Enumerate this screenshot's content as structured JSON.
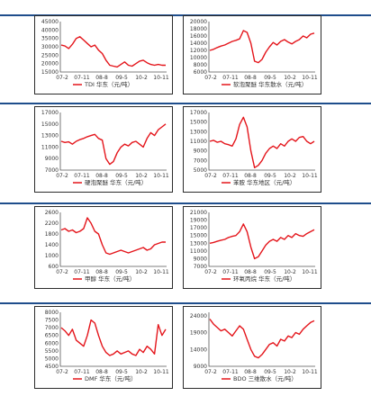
{
  "colors": {
    "line": "#e4151b",
    "rule": "#1f4e8c",
    "axis": "#555555"
  },
  "chart_data": [
    {
      "type": "line",
      "legend": "TDI  华东（元/吨）",
      "x_ticks": [
        "07-2",
        "07-11",
        "08-8",
        "09-5",
        "10-2",
        "10-11"
      ],
      "y_ticks": [
        15000,
        20000,
        25000,
        30000,
        35000,
        40000,
        45000
      ],
      "ylim": [
        15000,
        45000
      ],
      "series": [
        {
          "values": [
            31000,
            30500,
            29000,
            31500,
            35000,
            36000,
            34000,
            32000,
            30000,
            31000,
            28000,
            26000,
            22000,
            19000,
            18500,
            18000,
            19500,
            21000,
            19000,
            18500,
            20000,
            21500,
            22000,
            20500,
            19500,
            19000,
            19500,
            19000,
            19000
          ]
        }
      ]
    },
    {
      "type": "line",
      "legend": "软泡聚醚  华东散水（元/吨）",
      "x_ticks": [
        "07-2",
        "07-11",
        "08-8",
        "09-5",
        "10-2",
        "10-11"
      ],
      "y_ticks": [
        6000,
        8000,
        10000,
        12000,
        14000,
        16000,
        18000,
        20000
      ],
      "ylim": [
        6000,
        20000
      ],
      "series": [
        {
          "values": [
            12000,
            12300,
            12800,
            13200,
            13500,
            14000,
            14500,
            14800,
            15200,
            17500,
            17000,
            14000,
            9000,
            8600,
            9500,
            11500,
            13000,
            14200,
            13500,
            14500,
            15000,
            14300,
            13800,
            14500,
            15000,
            16000,
            15500,
            16500,
            16800
          ]
        }
      ]
    },
    {
      "type": "line",
      "legend": "硬泡聚醚  华东（元/吨）",
      "x_ticks": [
        "07-2",
        "07-11",
        "08-8",
        "09-5",
        "10-2",
        "10-11"
      ],
      "y_ticks": [
        7000,
        9000,
        11000,
        13000,
        15000,
        17000
      ],
      "ylim": [
        7000,
        17000
      ],
      "series": [
        {
          "values": [
            12000,
            11800,
            11900,
            11500,
            12000,
            12300,
            12500,
            12800,
            13000,
            13200,
            12500,
            12200,
            9000,
            8000,
            8500,
            10000,
            11000,
            11500,
            11200,
            11800,
            12000,
            11500,
            11000,
            12500,
            13500,
            13000,
            14000,
            14500,
            15000
          ]
        }
      ]
    },
    {
      "type": "line",
      "legend": "苯胺  华东地区（元/吨）",
      "x_ticks": [
        "07-2",
        "07-11",
        "08-8",
        "09-5",
        "10-2",
        "10-11"
      ],
      "y_ticks": [
        5000,
        7000,
        9000,
        11000,
        13000,
        15000,
        17000
      ],
      "ylim": [
        5000,
        17000
      ],
      "series": [
        {
          "values": [
            11000,
            11200,
            10800,
            11000,
            10500,
            10300,
            10000,
            11500,
            14500,
            16000,
            14000,
            9000,
            5500,
            6000,
            7000,
            8500,
            9500,
            10000,
            9500,
            10500,
            10000,
            11000,
            11500,
            11000,
            11800,
            12000,
            11000,
            10500,
            11000
          ]
        }
      ]
    },
    {
      "type": "line",
      "legend": "甲醇  华东（元/吨）",
      "x_ticks": [
        "07-2",
        "07-11",
        "08-8",
        "09-5",
        "10-2",
        "10-11"
      ],
      "y_ticks": [
        600,
        1000,
        1400,
        1800,
        2200,
        2600
      ],
      "ylim": [
        600,
        2600
      ],
      "series": [
        {
          "values": [
            1950,
            2000,
            1900,
            1950,
            1850,
            1900,
            2000,
            2400,
            2200,
            1900,
            1800,
            1400,
            1100,
            1050,
            1100,
            1150,
            1200,
            1150,
            1100,
            1150,
            1200,
            1250,
            1300,
            1200,
            1250,
            1400,
            1450,
            1500,
            1500
          ]
        }
      ]
    },
    {
      "type": "line",
      "legend": "环氧丙烷  华东（元/吨）",
      "x_ticks": [
        "07-2",
        "07-11",
        "08-8",
        "09-5",
        "10-2",
        "10-11"
      ],
      "y_ticks": [
        7000,
        9000,
        11000,
        13000,
        15000,
        17000,
        19000,
        21000
      ],
      "ylim": [
        7000,
        21000
      ],
      "series": [
        {
          "values": [
            13000,
            13200,
            13500,
            13800,
            14000,
            14500,
            14800,
            15000,
            16000,
            18000,
            16000,
            12000,
            9000,
            9500,
            11000,
            12500,
            13500,
            14000,
            13500,
            14500,
            14000,
            15000,
            14500,
            15500,
            15000,
            14800,
            15500,
            16000,
            16500
          ]
        }
      ]
    },
    {
      "type": "line",
      "legend": "DMF  华东（元/吨）",
      "x_ticks": [
        "07-2",
        "07-11",
        "08-8",
        "09-5",
        "10-2",
        "10-11"
      ],
      "y_ticks": [
        4500,
        5000,
        5500,
        6000,
        6500,
        7000,
        7500,
        8000
      ],
      "ylim": [
        4500,
        8000
      ],
      "series": [
        {
          "values": [
            7000,
            6800,
            6500,
            6900,
            6200,
            6000,
            5800,
            6500,
            7500,
            7300,
            6500,
            5800,
            5400,
            5200,
            5300,
            5500,
            5300,
            5400,
            5500,
            5300,
            5200,
            5600,
            5400,
            5800,
            5600,
            5300,
            7200,
            6500,
            6900
          ]
        }
      ]
    },
    {
      "type": "line",
      "legend": "BDO  三维散水（元/吨）",
      "x_ticks": [
        "07-2",
        "07-11",
        "08-8",
        "09-5",
        "10-2",
        "10-11"
      ],
      "y_ticks": [
        9000,
        14000,
        19000,
        24000
      ],
      "ylim": [
        9000,
        25000
      ],
      "series": [
        {
          "values": [
            23000,
            21500,
            20500,
            19500,
            20000,
            19000,
            18000,
            19500,
            21000,
            20000,
            17000,
            14000,
            12000,
            11500,
            12500,
            14000,
            15500,
            16000,
            15000,
            17000,
            16500,
            18000,
            17500,
            19000,
            18500,
            20000,
            21000,
            22000,
            22500
          ]
        }
      ]
    }
  ]
}
